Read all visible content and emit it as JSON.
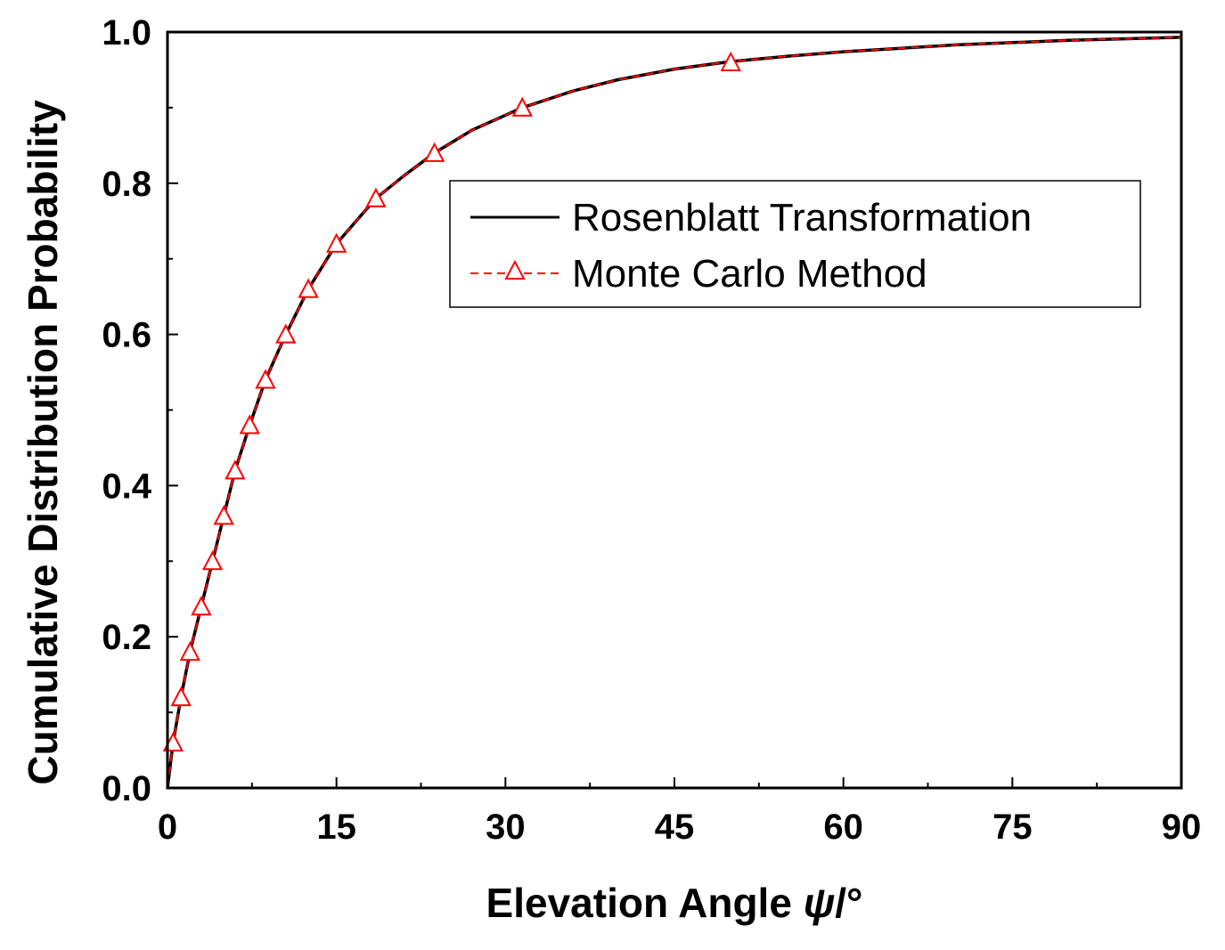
{
  "chart_data": {
    "type": "line",
    "title": "",
    "xlabel": "Elevation Angle ",
    "xlabel_symbol": "ψ",
    "xlabel_unit": "/°",
    "ylabel": "Cumulative Distribution Probability",
    "xlim": [
      0,
      90
    ],
    "ylim": [
      0,
      1.0
    ],
    "x_ticks": [
      0,
      15,
      30,
      45,
      60,
      75,
      90
    ],
    "x_tick_labels": [
      "0",
      "15",
      "30",
      "45",
      "60",
      "75",
      "90"
    ],
    "y_ticks": [
      0,
      0.2,
      0.4,
      0.6,
      0.8,
      1.0
    ],
    "y_tick_labels": [
      "0.0",
      "0.2",
      "0.4",
      "0.6",
      "0.8",
      "1.0"
    ],
    "grid": false,
    "legend_position": "top-right",
    "series": [
      {
        "name": "Rosenblatt Transformation",
        "style": "solid",
        "color": "#000000",
        "x": [
          0,
          0.5,
          1.2,
          2,
          3,
          4,
          5,
          6,
          7.3,
          8.7,
          10.5,
          12.5,
          15,
          18.5,
          21,
          23.7,
          27,
          31.5,
          36,
          40,
          45,
          50,
          55,
          60,
          70,
          80,
          90
        ],
        "y": [
          0,
          0.06,
          0.12,
          0.18,
          0.24,
          0.3,
          0.36,
          0.42,
          0.48,
          0.54,
          0.6,
          0.66,
          0.72,
          0.78,
          0.81,
          0.84,
          0.87,
          0.9,
          0.922,
          0.937,
          0.951,
          0.961,
          0.968,
          0.974,
          0.983,
          0.989,
          0.993
        ]
      },
      {
        "name": "Monte Carlo Method",
        "style": "dashed",
        "marker": "open-triangle",
        "color": "#ff0000",
        "x": [
          0,
          0.5,
          1.2,
          2,
          3,
          4,
          5,
          6,
          7.3,
          8.7,
          10.5,
          12.5,
          15,
          18.5,
          21,
          23.7,
          27,
          31.5,
          36,
          40,
          45,
          50,
          55,
          60,
          70,
          80,
          90
        ],
        "y": [
          0,
          0.06,
          0.12,
          0.18,
          0.24,
          0.3,
          0.36,
          0.42,
          0.48,
          0.54,
          0.6,
          0.66,
          0.72,
          0.78,
          0.81,
          0.84,
          0.87,
          0.9,
          0.922,
          0.937,
          0.951,
          0.961,
          0.968,
          0.974,
          0.983,
          0.989,
          0.993
        ],
        "marker_x": [
          0.5,
          1.2,
          2,
          3,
          4,
          5,
          6,
          7.3,
          8.7,
          10.5,
          12.5,
          15,
          18.5,
          23.7,
          31.5,
          50
        ],
        "marker_y": [
          0.06,
          0.12,
          0.18,
          0.24,
          0.3,
          0.36,
          0.42,
          0.48,
          0.54,
          0.6,
          0.66,
          0.72,
          0.78,
          0.84,
          0.9,
          0.96
        ]
      }
    ]
  }
}
